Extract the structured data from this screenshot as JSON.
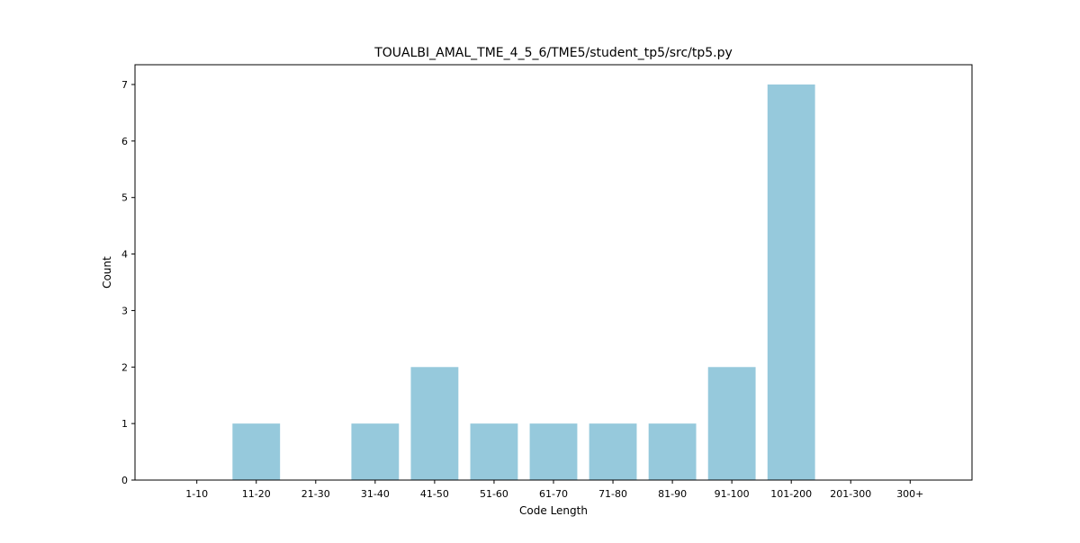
{
  "chart_data": {
    "type": "bar",
    "title": "TOUALBI_AMAL_TME_4_5_6/TME5/student_tp5/src/tp5.py",
    "xlabel": "Code Length",
    "ylabel": "Count",
    "categories": [
      "1-10",
      "11-20",
      "21-30",
      "31-40",
      "41-50",
      "51-60",
      "61-70",
      "71-80",
      "81-90",
      "91-100",
      "101-200",
      "201-300",
      "300+"
    ],
    "values": [
      0,
      1,
      0,
      1,
      2,
      1,
      1,
      1,
      1,
      2,
      7,
      0,
      0
    ],
    "ylim": [
      0,
      7.35
    ],
    "yticks": [
      0,
      1,
      2,
      3,
      4,
      5,
      6,
      7
    ],
    "grid": false,
    "legend": "none",
    "bar_color": "#96c9dc"
  }
}
